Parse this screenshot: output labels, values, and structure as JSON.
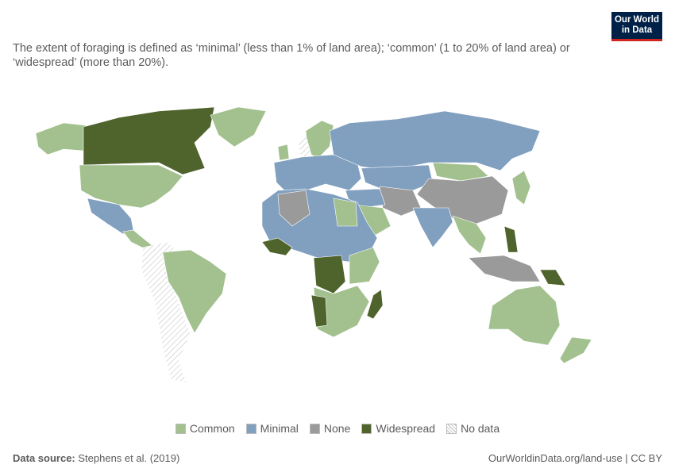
{
  "header": {
    "subtitle": "The extent of foraging is defined as ‘minimal’ (less than 1% of land area); ‘common’ (1 to 20% of land area) or ‘widespread’ (more than 20%).",
    "logo": [
      "Our World",
      "in Data"
    ]
  },
  "legend": [
    {
      "name": "Common",
      "color": "#a2c18f"
    },
    {
      "name": "Minimal",
      "color": "#819fbf"
    },
    {
      "name": "None",
      "color": "#9a9a9a"
    },
    {
      "name": "Widespread",
      "color": "#4f632c"
    },
    {
      "name": "No data",
      "color": "hatch"
    }
  ],
  "footer": {
    "source_label": "Data source:",
    "source": "Stephens et al. (2019)",
    "url": "OurWorldinData.org/land-use | CC BY"
  }
}
